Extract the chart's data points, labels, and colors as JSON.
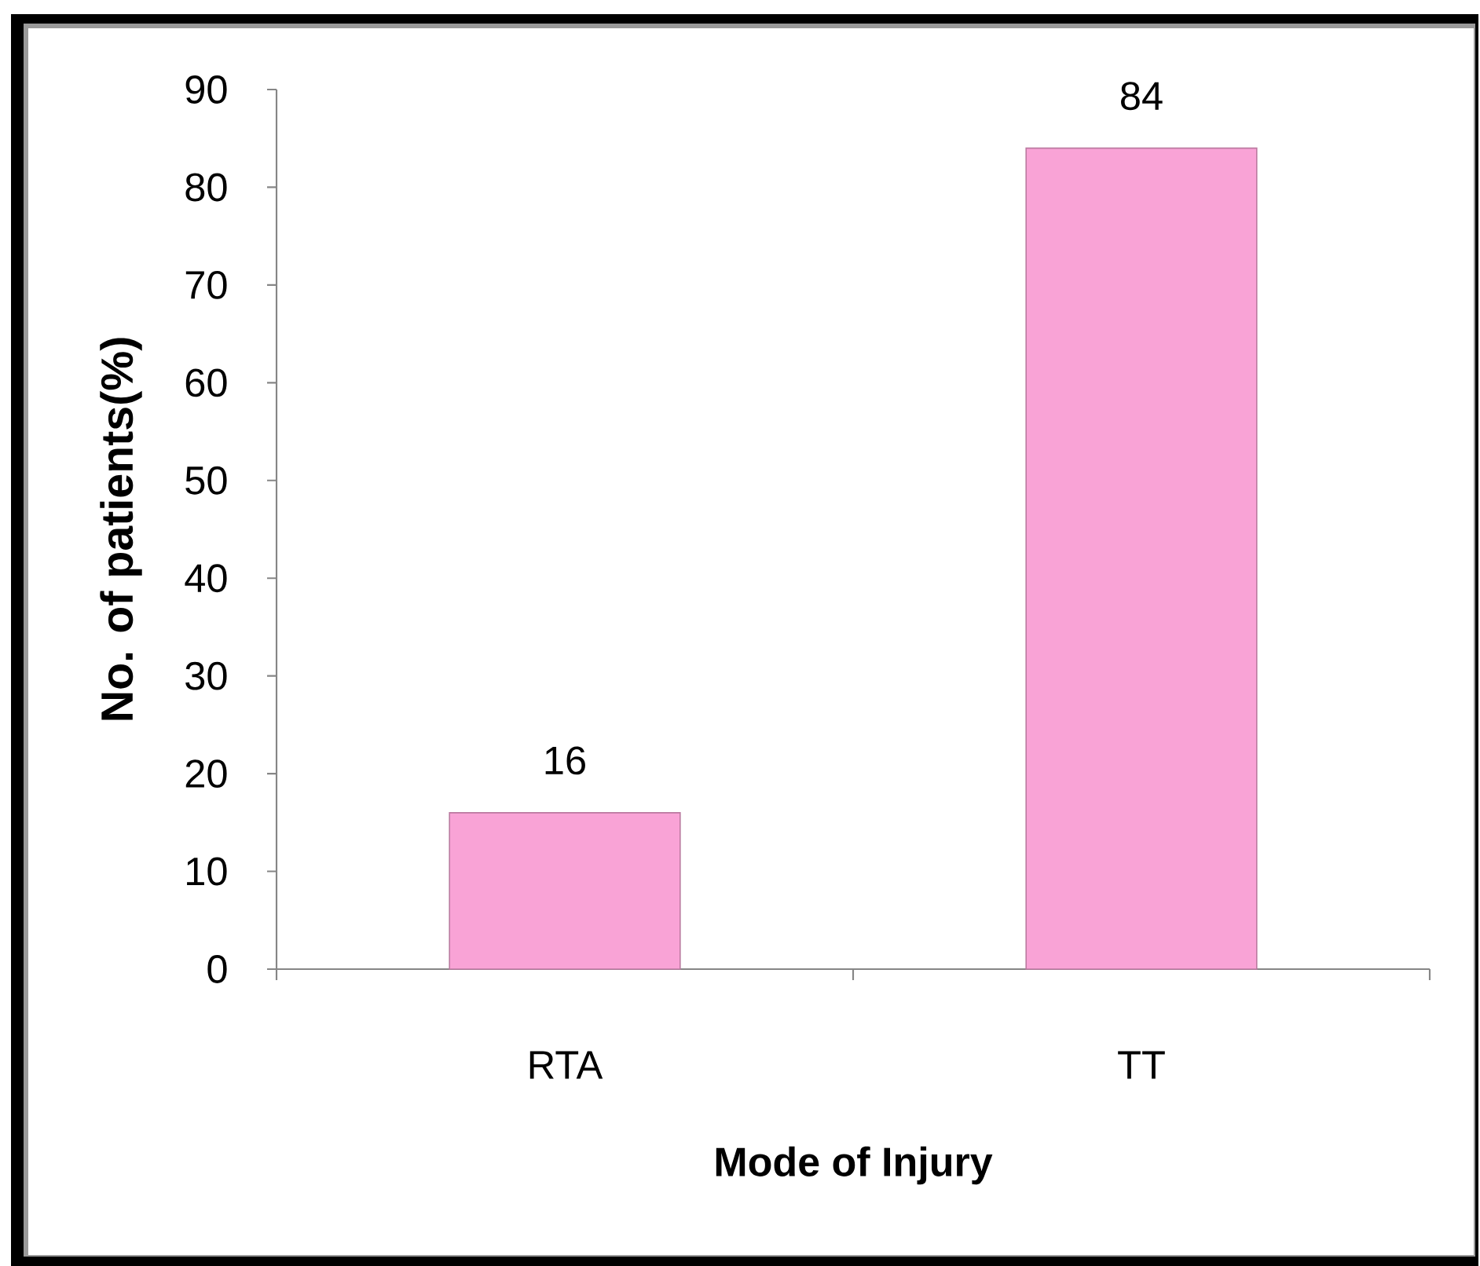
{
  "chart_data": {
    "type": "bar",
    "xlabel": "Mode of Injury",
    "ylabel": "No. of patients(%)",
    "categories": [
      "RTA",
      "TT"
    ],
    "values": [
      16,
      84
    ],
    "color": "#f9a3d6",
    "ylim": [
      0,
      90
    ],
    "yticks": [
      0,
      10,
      20,
      30,
      40,
      50,
      60,
      70,
      80,
      90
    ],
    "data_labels": true
  }
}
